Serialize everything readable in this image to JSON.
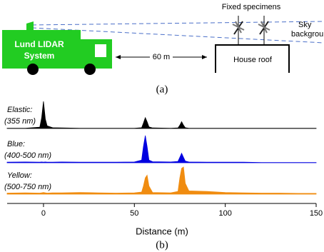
{
  "diagram": {
    "truck_label_1": "Lund LIDAR",
    "truck_label_2": "System",
    "distance": "60 m",
    "roof": "House roof",
    "specimens": "Fixed specimens",
    "sky_1": "Sky",
    "sky_2": "background",
    "panel_label": "(a)"
  },
  "chart_data": {
    "type": "line",
    "xlabel": "Distance (m)",
    "panel_label": "(b)",
    "x": [
      -20,
      -10,
      -2,
      -1,
      0,
      1,
      2,
      5,
      10,
      20,
      30,
      40,
      50,
      54,
      55,
      56,
      57,
      58,
      60,
      70,
      74,
      75,
      76,
      77,
      78,
      80,
      90,
      100,
      110,
      120,
      130,
      140,
      150
    ],
    "xlim": [
      -20,
      150
    ],
    "xticks": [
      0,
      50,
      100,
      150
    ],
    "ylim": [
      0,
      1
    ],
    "series": [
      {
        "name": "Elastic:",
        "band": "(355 nm)",
        "color": "#000000",
        "values": [
          0.01,
          0.01,
          0.05,
          0.4,
          1.0,
          0.35,
          0.1,
          0.03,
          0.02,
          0.01,
          0.01,
          0.01,
          0.01,
          0.03,
          0.2,
          0.4,
          0.25,
          0.06,
          0.02,
          0.01,
          0.02,
          0.12,
          0.25,
          0.12,
          0.03,
          0.01,
          0.01,
          0.01,
          0.01,
          0.01,
          0.01,
          0.01,
          0.01
        ]
      },
      {
        "name": "Blue:",
        "band": "(400-500 nm)",
        "color": "#0000e0",
        "values": [
          0.02,
          0.03,
          0.02,
          0.03,
          0.02,
          0.03,
          0.02,
          0.02,
          0.03,
          0.02,
          0.02,
          0.02,
          0.03,
          0.1,
          0.6,
          1.0,
          0.6,
          0.1,
          0.04,
          0.03,
          0.05,
          0.2,
          0.35,
          0.2,
          0.06,
          0.03,
          0.02,
          0.02,
          0.02,
          0.01,
          0.01,
          0.01,
          0.01
        ]
      },
      {
        "name": "Yellow:",
        "band": "(500-750 nm)",
        "color": "#f08c10",
        "values": [
          0.04,
          0.05,
          0.04,
          0.05,
          0.06,
          0.05,
          0.04,
          0.05,
          0.05,
          0.06,
          0.05,
          0.04,
          0.05,
          0.08,
          0.3,
          0.6,
          0.7,
          0.3,
          0.06,
          0.05,
          0.1,
          0.6,
          0.95,
          1.0,
          0.4,
          0.12,
          0.1,
          0.06,
          0.05,
          0.04,
          0.04,
          0.03,
          0.03
        ]
      }
    ]
  }
}
